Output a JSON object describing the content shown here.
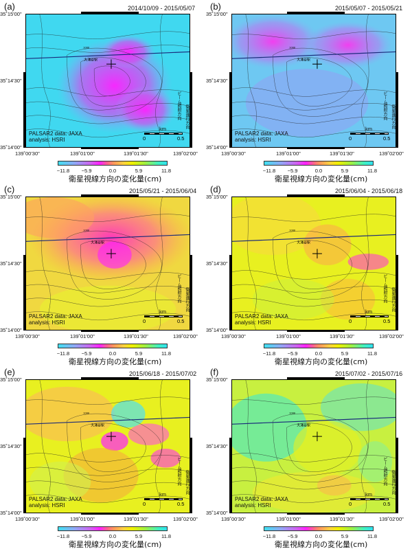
{
  "colorbar": {
    "ticks": [
      "−11.8",
      "−5.9",
      "0.0",
      "5.9",
      "11.8"
    ],
    "caption": "衛星視線方向の変化量(cm)",
    "stops": [
      "#3fe0f0",
      "#8fa8f5",
      "#d060f0",
      "#ff20ff",
      "#ff6090",
      "#ff9060",
      "#ffd040",
      "#f0f000",
      "#a0f040",
      "#40f0c0",
      "#30e0f0"
    ]
  },
  "axes": {
    "lat_top": "35˚15'00\"",
    "lat_mid": "35˚14'30\"",
    "lat_bottom": "35˚14'00\"",
    "lon_1": "139˚00'30\"",
    "lon_2": "139˚01'00\"",
    "lon_3": "139˚01'30\"",
    "lon_4": "139˚02'00\""
  },
  "credit": {
    "line1": "PALSAR2 data: JAXA",
    "line2": "analysis: HSRI"
  },
  "scalebar": {
    "unit": "km",
    "start": "0",
    "end": "0.5"
  },
  "direction": {
    "beam": "ビーム照射方向",
    "orbit": "衛星進行方向"
  },
  "map_labels": {
    "peak": "大涌谷駅",
    "contour_1000": "1000"
  },
  "panels": [
    {
      "label": "(a)",
      "dates": "2014/10/09 - 2015/05/07",
      "base": "#40d8f0",
      "theme": "magenta"
    },
    {
      "label": "(b)",
      "dates": "2015/05/07 - 2015/05/21",
      "base": "#6ec8f2",
      "theme": "magenta-light"
    },
    {
      "label": "(c)",
      "dates": "2015/05/21 - 2015/06/04",
      "base": "#f0e030",
      "theme": "orange-magenta"
    },
    {
      "label": "(d)",
      "dates": "2015/06/04 - 2015/06/18",
      "base": "#e8f020",
      "theme": "yellow"
    },
    {
      "label": "(e)",
      "dates": "2015/06/18 - 2015/07/02",
      "base": "#e8f020",
      "theme": "yellow-noisy"
    },
    {
      "label": "(f)",
      "dates": "2015/07/02 - 2015/07/16",
      "base": "#c8f040",
      "theme": "green-yellow"
    }
  ]
}
